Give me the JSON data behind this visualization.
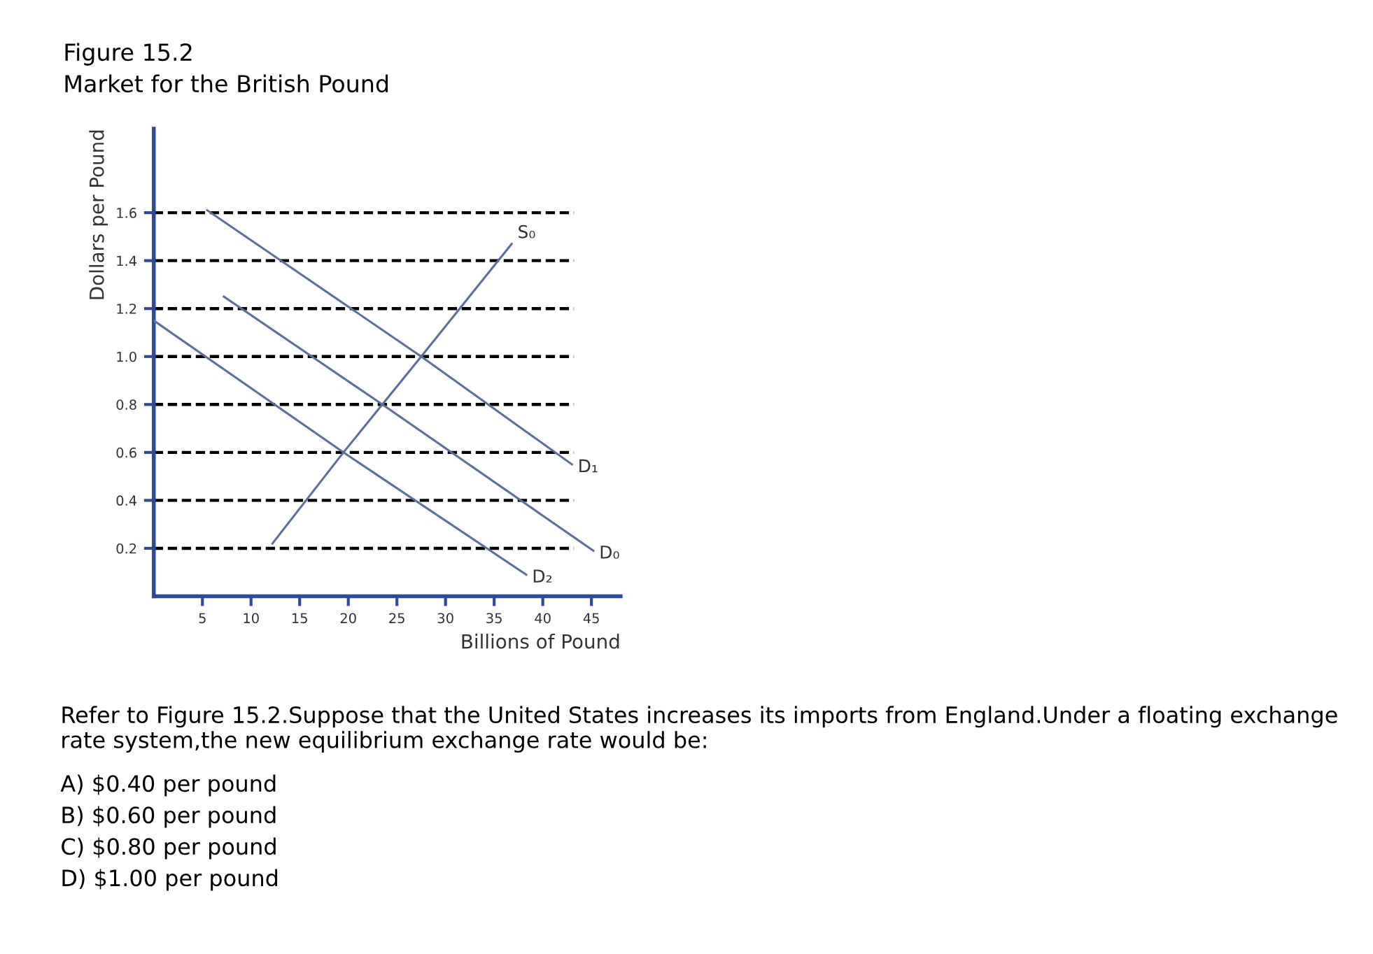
{
  "chart_data": {
    "type": "line",
    "title": "Figure 15.2",
    "subtitle": "Market for the British Pound",
    "xlabel": "Billions of Pound",
    "ylabel": "Dollars per Pound",
    "xlim": [
      0,
      48
    ],
    "ylim": [
      0,
      1.95
    ],
    "xticks": [
      5,
      10,
      15,
      20,
      25,
      30,
      35,
      40,
      45
    ],
    "yticks": [
      0.2,
      0.4,
      0.6,
      0.8,
      {
        "value": 1.0,
        "label": "1.0"
      },
      1.2,
      1.4,
      1.6
    ],
    "series": [
      {
        "name": "S₀",
        "color": "#5a6f9a",
        "x": [
          12.2,
          19.5,
          23.5,
          27.5,
          36.8
        ],
        "values": [
          0.22,
          0.6,
          0.8,
          1.0,
          1.47
        ]
      },
      {
        "name": "D₁",
        "color": "#5a6f9a",
        "x": [
          5.5,
          27.5,
          43
        ],
        "values": [
          1.61,
          1.0,
          0.55
        ]
      },
      {
        "name": "D₀",
        "color": "#5a6f9a",
        "x": [
          7.2,
          23.5,
          45.2
        ],
        "values": [
          1.25,
          0.8,
          0.19
        ]
      },
      {
        "name": "D₂",
        "color": "#5a6f9a",
        "x": [
          0,
          19.5,
          38.3
        ],
        "values": [
          1.15,
          0.6,
          0.09
        ]
      }
    ],
    "ref_lines": [
      {
        "axis": "y",
        "value": 0.2,
        "color": "#000000",
        "line_style": "dashed"
      },
      {
        "axis": "y",
        "value": 0.4,
        "color": "#000000",
        "line_style": "dashed"
      },
      {
        "axis": "y",
        "value": 0.6,
        "color": "#000000",
        "line_style": "dashed"
      },
      {
        "axis": "y",
        "value": 0.8,
        "color": "#000000",
        "line_style": "dashed"
      },
      {
        "axis": "y",
        "value": 1.0,
        "color": "#000000",
        "line_style": "dashed"
      },
      {
        "axis": "y",
        "value": 1.2,
        "color": "#000000",
        "line_style": "dashed"
      },
      {
        "axis": "y",
        "value": 1.4,
        "color": "#000000",
        "line_style": "dashed"
      },
      {
        "axis": "y",
        "value": 1.6,
        "color": "#000000",
        "line_style": "dashed"
      }
    ],
    "annotations": [
      "Refer to Figure 15.2.Suppose that the United States increases its imports from England.Under a floating exchange rate system,the new equilibrium exchange rate would be:",
      "A) $0.40 per pound",
      "B) $0.60 per pound",
      "C) $0.80 per pound",
      "D) $1.00 per pound"
    ],
    "line_style": "solid",
    "marker": "none",
    "grid": false,
    "legend": false
  }
}
